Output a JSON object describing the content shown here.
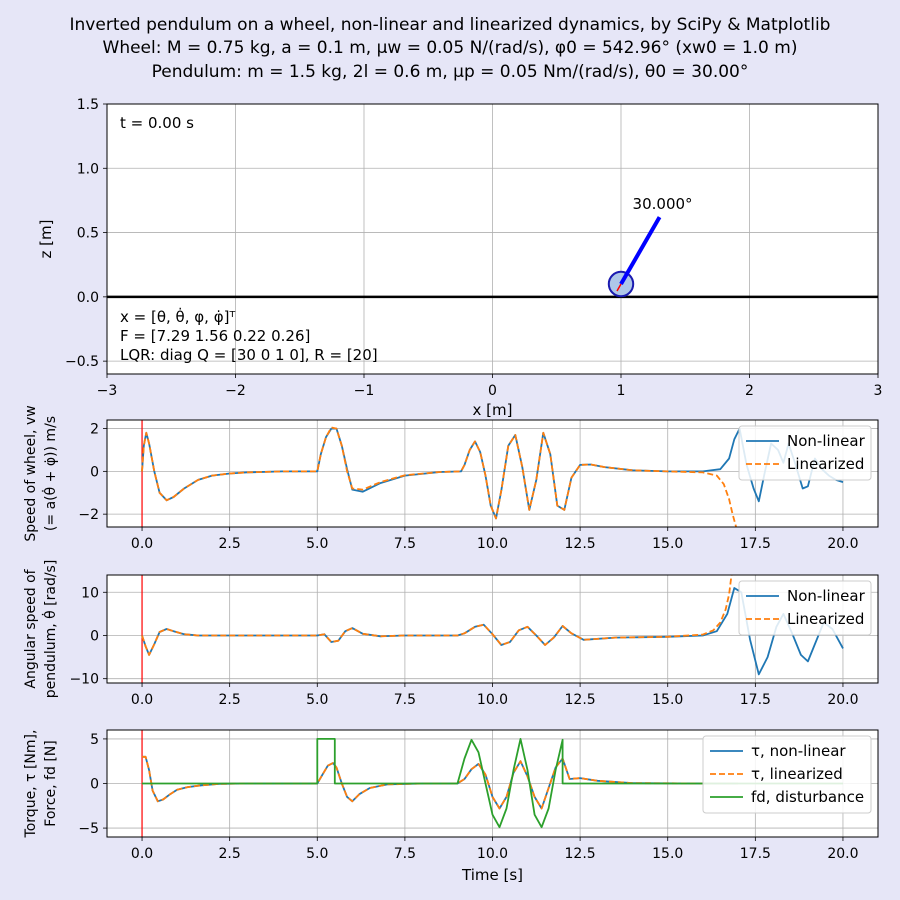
{
  "figure": {
    "title_line1": "Inverted pendulum on a wheel, non-linear and linearized dynamics, by SciPy & Matplotlib",
    "title_line2": "Wheel: M = 0.75 kg, a = 0.1 m, μw = 0.05 N/(rad/s), φ0 = 542.96°  (xw0 = 1.0 m)",
    "title_line3": "Pendulum: m = 1.5 kg, 2l = 0.6 m, μp = 0.05 Nm/(rad/s), θ0 = 30.00°",
    "colors": {
      "background": "#e6e6f7",
      "nonlinear": "#1f77b4",
      "linearized": "#ff7f0e",
      "disturbance": "#2ca02c",
      "pendulum_rod": "#0000ff",
      "wheel_fill": "#aec7e8",
      "time_marker": "#ff0000"
    }
  },
  "chart_data": [
    {
      "type": "scatter",
      "name": "scene",
      "xlabel": "x [m]",
      "ylabel": "z [m]",
      "xlim": [
        -3,
        3
      ],
      "ylim": [
        -0.6,
        1.5
      ],
      "xticks": [
        -3,
        -2,
        -1,
        0,
        1,
        2,
        3
      ],
      "xtick_labels": [
        "−3",
        "−2",
        "−1",
        "0",
        "1",
        "2",
        "3"
      ],
      "yticks": [
        -0.5,
        0.0,
        0.5,
        1.0,
        1.5
      ],
      "ytick_labels": [
        "−0.5",
        "0.0",
        "0.5",
        "1.0",
        "1.5"
      ],
      "grid": true,
      "time_text": "t = 0.00 s",
      "angle_label": "30.000°",
      "info_lines": [
        "x = [θ, θ̇, φ, φ̇]ᵀ",
        "F = [7.29 1.56 0.22 0.26]",
        "LQR: diag Q = [30  0  1  0], R = [20]"
      ],
      "wheel": {
        "x": 1.0,
        "z": 0.1,
        "radius": 0.1
      },
      "rod": {
        "x0": 1.0,
        "z0": 0.1,
        "x1": 1.3,
        "z1": 0.62
      },
      "ground_z": 0.0
    },
    {
      "type": "line",
      "name": "wheel-speed",
      "ylabel_line1": "Speed of wheel, vw",
      "ylabel_line2": "(= a(θ̇ + φ̇)) m/s",
      "xlim": [
        -1,
        21
      ],
      "ylim": [
        -2.6,
        2.4
      ],
      "xticks": [
        0,
        2.5,
        5,
        7.5,
        10,
        12.5,
        15,
        17.5,
        20
      ],
      "xtick_labels": [
        "0.0",
        "2.5",
        "5.0",
        "7.5",
        "10.0",
        "12.5",
        "15.0",
        "17.5",
        "20.0"
      ],
      "yticks": [
        -2,
        0,
        2
      ],
      "ytick_labels": [
        "−2",
        "0",
        "2"
      ],
      "grid": true,
      "legend": "top-right",
      "series": [
        {
          "name": "Non-linear",
          "style": "solid",
          "x": [
            0,
            0.05,
            0.12,
            0.2,
            0.35,
            0.5,
            0.7,
            0.9,
            1.2,
            1.6,
            2.0,
            2.5,
            3.0,
            4.0,
            5.0,
            5.1,
            5.25,
            5.4,
            5.55,
            5.7,
            5.85,
            6.0,
            6.3,
            6.8,
            7.5,
            8.5,
            9.1,
            9.2,
            9.35,
            9.5,
            9.65,
            9.8,
            9.95,
            10.1,
            10.25,
            10.45,
            10.65,
            10.85,
            11.05,
            11.25,
            11.45,
            11.65,
            11.85,
            12.05,
            12.25,
            12.5,
            12.8,
            13.2,
            14.0,
            15.0,
            16.0,
            16.5,
            16.75,
            16.9,
            17.05,
            17.25,
            17.45,
            17.6,
            17.75,
            17.95,
            18.15,
            18.3,
            18.45,
            18.65,
            18.85,
            19.0,
            19.2,
            19.4,
            19.6,
            19.8,
            20.0
          ],
          "y": [
            0,
            1.2,
            1.8,
            1.3,
            0,
            -1.0,
            -1.35,
            -1.2,
            -0.8,
            -0.4,
            -0.2,
            -0.1,
            -0.05,
            0,
            0,
            0.8,
            1.6,
            2.0,
            2.0,
            1.2,
            0.1,
            -0.85,
            -0.95,
            -0.55,
            -0.2,
            -0.03,
            0,
            0.3,
            1.0,
            1.4,
            0.9,
            -0.2,
            -1.6,
            -2.2,
            -0.9,
            1.2,
            1.7,
            0.2,
            -1.8,
            -0.4,
            1.8,
            0.8,
            -1.6,
            -1.8,
            -0.3,
            0.3,
            0.32,
            0.2,
            0.05,
            0,
            0,
            0.1,
            0.6,
            1.5,
            2.0,
            0.3,
            -0.8,
            -1.4,
            -0.2,
            1.3,
            1.0,
            0.4,
            1.3,
            0.3,
            -0.8,
            -0.7,
            0.6,
            0.1,
            -0.2,
            -0.4,
            -0.5
          ]
        },
        {
          "name": "Linearized",
          "style": "dashed",
          "x": [
            0,
            0.05,
            0.12,
            0.2,
            0.35,
            0.5,
            0.7,
            0.9,
            1.2,
            1.6,
            2.0,
            2.5,
            3.0,
            4.0,
            5.0,
            5.1,
            5.25,
            5.4,
            5.55,
            5.7,
            5.85,
            6.0,
            6.3,
            6.8,
            7.5,
            8.5,
            9.1,
            9.2,
            9.35,
            9.5,
            9.65,
            9.8,
            9.95,
            10.1,
            10.25,
            10.45,
            10.65,
            10.85,
            11.05,
            11.25,
            11.45,
            11.65,
            11.85,
            12.05,
            12.25,
            12.5,
            12.8,
            13.2,
            14.0,
            15.0,
            16.0,
            16.4,
            16.6,
            16.75,
            16.85,
            16.95
          ],
          "y": [
            0,
            1.2,
            1.8,
            1.3,
            0,
            -1.0,
            -1.35,
            -1.2,
            -0.8,
            -0.4,
            -0.2,
            -0.1,
            -0.05,
            0,
            0,
            0.8,
            1.6,
            2.05,
            2.0,
            1.2,
            0.0,
            -0.8,
            -0.85,
            -0.5,
            -0.18,
            -0.03,
            0,
            0.3,
            1.0,
            1.4,
            0.9,
            -0.2,
            -1.6,
            -2.2,
            -0.9,
            1.2,
            1.7,
            0.2,
            -1.8,
            -0.4,
            1.8,
            0.8,
            -1.6,
            -1.8,
            -0.3,
            0.3,
            0.32,
            0.2,
            0.05,
            0,
            -0.05,
            -0.2,
            -0.6,
            -1.3,
            -2.0,
            -2.6
          ]
        }
      ]
    },
    {
      "type": "line",
      "name": "pendulum-angular-speed",
      "ylabel_line1": "Angular speed of",
      "ylabel_line2": "pendulum, θ̇ [rad/s]",
      "xlim": [
        -1,
        21
      ],
      "ylim": [
        -11,
        14
      ],
      "xticks": [
        0,
        2.5,
        5,
        7.5,
        10,
        12.5,
        15,
        17.5,
        20
      ],
      "xtick_labels": [
        "0.0",
        "2.5",
        "5.0",
        "7.5",
        "10.0",
        "12.5",
        "15.0",
        "17.5",
        "20.0"
      ],
      "yticks": [
        -10,
        0,
        10
      ],
      "ytick_labels": [
        "−10",
        "0",
        "10"
      ],
      "grid": true,
      "legend": "top-right",
      "series": [
        {
          "name": "Non-linear",
          "style": "solid",
          "x": [
            0,
            0.1,
            0.2,
            0.35,
            0.5,
            0.7,
            0.9,
            1.2,
            1.6,
            2.0,
            3.0,
            5.0,
            5.2,
            5.4,
            5.6,
            5.8,
            6.0,
            6.3,
            6.8,
            7.5,
            9.0,
            9.2,
            9.5,
            9.75,
            10.0,
            10.25,
            10.5,
            10.75,
            11.0,
            11.25,
            11.5,
            11.75,
            12.0,
            12.25,
            12.6,
            13.5,
            15.0,
            16.0,
            16.4,
            16.7,
            16.9,
            17.1,
            17.35,
            17.6,
            17.85,
            18.1,
            18.3,
            18.55,
            18.8,
            19.0,
            19.2,
            19.45,
            19.7,
            20.0
          ],
          "y": [
            0,
            -2.5,
            -4.5,
            -2.0,
            0.8,
            1.5,
            1.0,
            0.3,
            0,
            0,
            0,
            0,
            0.3,
            -1.5,
            -1.2,
            1.0,
            1.7,
            0.4,
            -0.2,
            0,
            0,
            0.5,
            2.0,
            2.5,
            0.3,
            -2.2,
            -1.5,
            1.2,
            2.0,
            0.0,
            -2.2,
            -0.5,
            2.2,
            0.5,
            -1.0,
            -0.5,
            -0.3,
            0,
            1.0,
            5.0,
            11.0,
            10.0,
            -1.0,
            -9.0,
            -5.0,
            2.0,
            5.0,
            0.5,
            -4.5,
            -6.0,
            -2.0,
            3.0,
            1.5,
            -3.0
          ]
        },
        {
          "name": "Linearized",
          "style": "dashed",
          "x": [
            0,
            0.1,
            0.2,
            0.35,
            0.5,
            0.7,
            0.9,
            1.2,
            1.6,
            2.0,
            3.0,
            5.0,
            5.2,
            5.4,
            5.6,
            5.8,
            6.0,
            6.3,
            6.8,
            7.5,
            9.0,
            9.2,
            9.5,
            9.75,
            10.0,
            10.25,
            10.5,
            10.75,
            11.0,
            11.25,
            11.5,
            11.75,
            12.0,
            12.25,
            12.6,
            13.5,
            15.0,
            16.0,
            16.3,
            16.5,
            16.65,
            16.75,
            16.82
          ],
          "y": [
            0,
            -2.5,
            -4.5,
            -2.0,
            0.8,
            1.5,
            1.0,
            0.3,
            0,
            0,
            0,
            0,
            0.3,
            -1.5,
            -1.2,
            1.0,
            1.7,
            0.4,
            -0.2,
            0,
            0,
            0.5,
            2.0,
            2.5,
            0.3,
            -2.2,
            -1.5,
            1.2,
            2.0,
            0.0,
            -2.2,
            -0.5,
            2.2,
            0.5,
            -1.0,
            -0.5,
            -0.3,
            0.2,
            1.2,
            3.0,
            6.0,
            9.5,
            14.0
          ]
        }
      ]
    },
    {
      "type": "line",
      "name": "torque-force",
      "ylabel_line1": "Torque, τ [Nm],",
      "ylabel_line2": "Force, fd [N]",
      "xlabel": "Time [s]",
      "xlim": [
        -1,
        21
      ],
      "ylim": [
        -6,
        6
      ],
      "xticks": [
        0,
        2.5,
        5,
        7.5,
        10,
        12.5,
        15,
        17.5,
        20
      ],
      "xtick_labels": [
        "0.0",
        "2.5",
        "5.0",
        "7.5",
        "10.0",
        "12.5",
        "15.0",
        "17.5",
        "20.0"
      ],
      "yticks": [
        -5,
        0,
        5
      ],
      "ytick_labels": [
        "−5",
        "0",
        "5"
      ],
      "grid": true,
      "legend": "top-right",
      "series": [
        {
          "name": "τ, non-linear",
          "style": "solid",
          "x": [
            0,
            0.1,
            0.2,
            0.3,
            0.45,
            0.6,
            0.8,
            1.0,
            1.3,
            1.7,
            2.2,
            3.0,
            5.0,
            5.15,
            5.3,
            5.45,
            5.55,
            5.7,
            5.85,
            6.0,
            6.2,
            6.5,
            7.0,
            8.0,
            9.0,
            9.2,
            9.4,
            9.6,
            9.8,
            10.0,
            10.2,
            10.4,
            10.6,
            10.8,
            11.0,
            11.2,
            11.4,
            11.6,
            11.8,
            12.0,
            12.2,
            12.5,
            13.0,
            14.0,
            16.0,
            17.0
          ],
          "y": [
            3,
            3,
            1.5,
            -0.8,
            -2.0,
            -1.8,
            -1.2,
            -0.7,
            -0.4,
            -0.2,
            -0.05,
            0,
            0,
            1.0,
            2.0,
            2.3,
            1.8,
            0.0,
            -1.5,
            -2.0,
            -1.2,
            -0.5,
            -0.1,
            0,
            0,
            0.5,
            1.6,
            2.2,
            1.0,
            -1.5,
            -2.8,
            -1.5,
            1.2,
            2.5,
            0.8,
            -1.5,
            -2.8,
            -0.5,
            1.8,
            2.8,
            0.5,
            0.6,
            0.3,
            0.05,
            0,
            0
          ]
        },
        {
          "name": "τ, linearized",
          "style": "dashed",
          "x": [
            0,
            0.1,
            0.2,
            0.3,
            0.45,
            0.6,
            0.8,
            1.0,
            1.3,
            1.7,
            2.2,
            3.0,
            5.0,
            5.15,
            5.3,
            5.45,
            5.55,
            5.7,
            5.85,
            6.0,
            6.2,
            6.5,
            7.0,
            8.0,
            9.0,
            9.2,
            9.4,
            9.6,
            9.8,
            10.0,
            10.2,
            10.4,
            10.6,
            10.8,
            11.0,
            11.2,
            11.4,
            11.6,
            11.8,
            12.0,
            12.2,
            12.5,
            13.0,
            14.0,
            16.0,
            17.0
          ],
          "y": [
            3,
            3,
            1.5,
            -0.8,
            -2.0,
            -1.8,
            -1.2,
            -0.7,
            -0.4,
            -0.2,
            -0.05,
            0,
            0,
            1.0,
            2.0,
            2.3,
            1.8,
            0.0,
            -1.5,
            -2.0,
            -1.2,
            -0.5,
            -0.1,
            0,
            0,
            0.5,
            1.6,
            2.2,
            1.0,
            -1.5,
            -2.8,
            -1.5,
            1.2,
            2.5,
            0.8,
            -1.5,
            -2.8,
            -0.5,
            1.8,
            2.8,
            0.5,
            0.6,
            0.3,
            0.05,
            0,
            0
          ]
        },
        {
          "name": "fd, disturbance",
          "style": "solid",
          "x": [
            0,
            5.0,
            5.0,
            5.5,
            5.5,
            9.0,
            9.2,
            9.4,
            9.6,
            9.8,
            10.0,
            10.2,
            10.4,
            10.6,
            10.8,
            11.0,
            11.2,
            11.4,
            11.6,
            11.8,
            12.0,
            12.0,
            20.0
          ],
          "y": [
            0,
            0,
            5,
            5,
            0,
            0,
            2.8,
            4.9,
            3.5,
            0,
            -3.5,
            -4.9,
            -2.8,
            1.5,
            5,
            1.5,
            -3.5,
            -4.9,
            -2.8,
            1.5,
            4.9,
            0,
            0
          ]
        }
      ]
    }
  ]
}
